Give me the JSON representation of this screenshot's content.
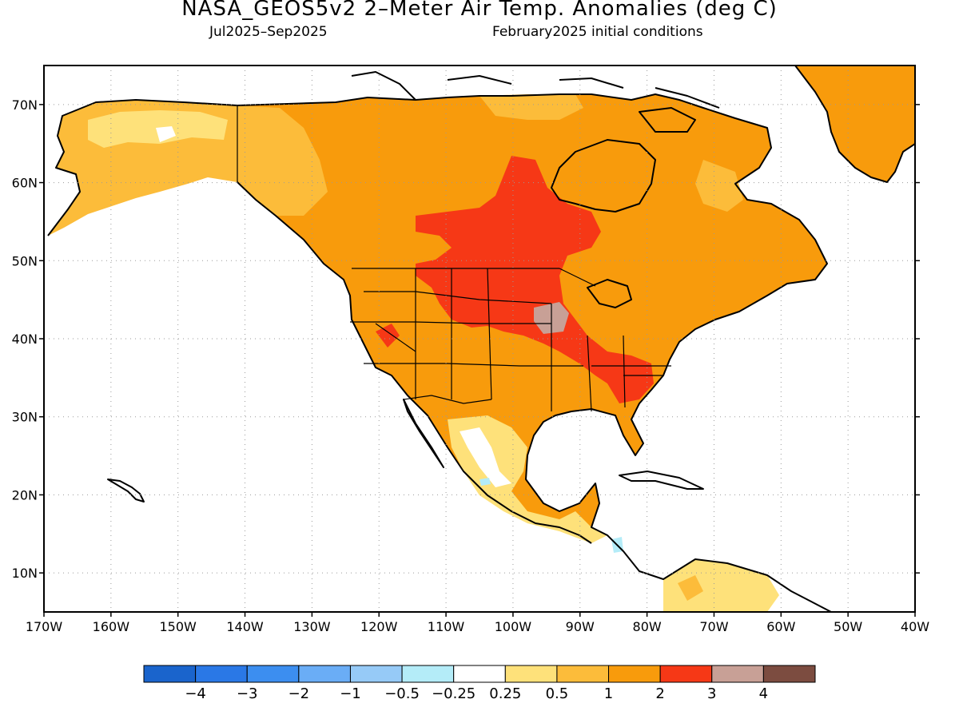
{
  "title": "NASA_GEOS5v2 2–Meter Air Temp. Anomalies (deg C)",
  "subtitle_left": "Jul2025–Sep2025",
  "subtitle_right": "February2025 initial conditions",
  "lon_labels": [
    "170W",
    "160W",
    "150W",
    "140W",
    "130W",
    "120W",
    "110W",
    "100W",
    "90W",
    "80W",
    "70W",
    "60W",
    "50W",
    "40W"
  ],
  "lat_labels": [
    "70N",
    "60N",
    "50N",
    "40N",
    "30N",
    "20N",
    "10N"
  ],
  "colorbar": {
    "colors": [
      "#1a64cc",
      "#2a78e6",
      "#3c8ef0",
      "#6aadf6",
      "#96caf7",
      "#b4ecf8",
      "#ffffff",
      "#fee17a",
      "#fcbc3a",
      "#f89b0c",
      "#f63816",
      "#c8a096",
      "#7c4c40"
    ],
    "labels": [
      "−4",
      "−3",
      "−2",
      "−1",
      "−0.5",
      "−0.25",
      "0.25",
      "0.5",
      "1",
      "2",
      "3",
      "4"
    ]
  },
  "map_colors": {
    "land_base": "#f89b0c",
    "warm_light": "#fcbc3a",
    "warm_pale": "#fee17a",
    "hot": "#f63816",
    "hotter": "#c8a096"
  }
}
